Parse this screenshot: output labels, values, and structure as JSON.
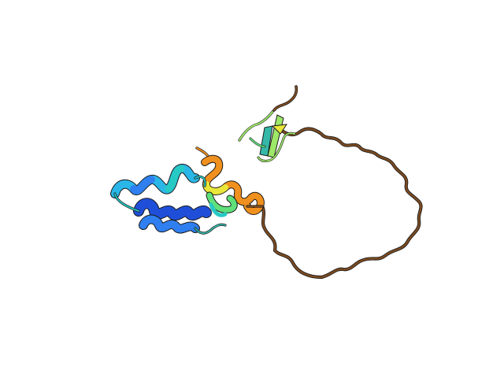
{
  "image": {
    "subject": "protein-cartoon",
    "colors": {
      "background": "#ffffff",
      "helix_blue_dark": "#1f4fd8",
      "helix_blue": "#2f7ff0",
      "helix_cyan": "#2ab7e8",
      "helix_teal": "#27c9c3",
      "helix_green": "#5fe07a",
      "helix_yellow": "#e8e63a",
      "helix_orange": "#f0901e",
      "strand_green": "#9ee868",
      "strand_teal": "#35b8a8",
      "coil_brown": "#7a4a22",
      "outline": "#1a1a1a"
    }
  }
}
